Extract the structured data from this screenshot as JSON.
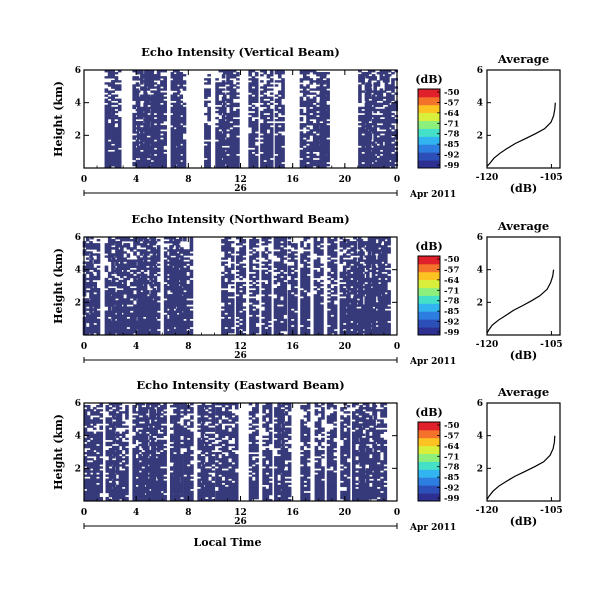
{
  "chart_data": {
    "type": "heatmap",
    "figure": {
      "xlabel": "Local Time",
      "date_label": "Apr 2011",
      "date_axis_tick": "26",
      "colorbar_unit": "(dB)",
      "colorbar_ticks": [
        "-50",
        "-57",
        "-64",
        "-71",
        "-78",
        "-85",
        "-92",
        "-99"
      ],
      "colorbar_colors": [
        "#2d3091",
        "#2c4fb8",
        "#2d7ee0",
        "#32b4f0",
        "#45e0c8",
        "#8ef07c",
        "#d8f03c",
        "#fcc323",
        "#f4722b",
        "#e0202a"
      ],
      "nodata_color": "#ffffff",
      "palette_low_color": "#373a7a"
    },
    "panels": [
      {
        "title": "Echo Intensity (Vertical Beam)",
        "ylabel": "Height (km)",
        "yticks": [
          "2",
          "4",
          "6"
        ],
        "ylim": [
          0,
          6
        ],
        "x_ticks": [
          "0",
          "4",
          "8",
          "12",
          "16",
          "20",
          "0"
        ],
        "xlim": [
          0,
          24
        ],
        "echo_columns_hours": [
          2.0,
          2.5,
          4.0,
          4.5,
          5.0,
          5.5,
          6.0,
          7.0,
          7.3,
          9.5,
          10.5,
          11.0,
          11.5,
          13.0,
          14.0,
          15.0,
          17.0,
          18.0,
          18.5,
          21.5,
          22.0,
          22.5,
          23.0,
          23.5
        ],
        "average": {
          "title": "Average",
          "xlabel": "(dB)",
          "xticks": [
            "-120",
            "-105"
          ],
          "xlim": [
            -120,
            -103
          ],
          "yticks": [
            "2",
            "4",
            "6"
          ],
          "ylim": [
            0,
            6
          ],
          "profile": [
            {
              "height": 0.1,
              "db": -120.0
            },
            {
              "height": 0.3,
              "db": -119.3
            },
            {
              "height": 0.6,
              "db": -118.4
            },
            {
              "height": 0.9,
              "db": -117.0
            },
            {
              "height": 1.2,
              "db": -115.3
            },
            {
              "height": 1.5,
              "db": -113.4
            },
            {
              "height": 1.8,
              "db": -111.0
            },
            {
              "height": 2.1,
              "db": -108.7
            },
            {
              "height": 2.4,
              "db": -106.6
            },
            {
              "height": 2.8,
              "db": -105.1
            },
            {
              "height": 3.2,
              "db": -104.5
            },
            {
              "height": 3.6,
              "db": -104.2
            },
            {
              "height": 4.0,
              "db": -104.1
            }
          ]
        }
      },
      {
        "title": "Echo Intensity (Northward Beam)",
        "ylabel": "Height (km)",
        "yticks": [
          "2",
          "4",
          "6"
        ],
        "ylim": [
          0,
          6
        ],
        "x_ticks": [
          "0",
          "4",
          "8",
          "12",
          "16",
          "20",
          "0"
        ],
        "xlim": [
          0,
          24
        ],
        "echo_columns_hours": [
          0.3,
          0.8,
          2.0,
          2.5,
          3.0,
          4.0,
          4.5,
          5.0,
          5.5,
          6.5,
          7.0,
          7.3,
          8.0,
          11.0,
          12.0,
          13.0,
          14.0,
          15.0,
          16.0,
          17.0,
          18.0,
          19.0,
          20.0,
          20.5,
          21.0,
          21.5,
          22.0,
          22.5,
          23.0
        ],
        "average": {
          "title": "Average",
          "xlabel": "(dB)",
          "xticks": [
            "-120",
            "-105"
          ],
          "xlim": [
            -120,
            -103
          ],
          "yticks": [
            "2",
            "4",
            "6"
          ],
          "ylim": [
            0,
            6
          ],
          "profile": [
            {
              "height": 0.1,
              "db": -120.0
            },
            {
              "height": 0.3,
              "db": -119.6
            },
            {
              "height": 0.6,
              "db": -118.8
            },
            {
              "height": 0.9,
              "db": -117.4
            },
            {
              "height": 1.2,
              "db": -115.6
            },
            {
              "height": 1.5,
              "db": -113.9
            },
            {
              "height": 1.8,
              "db": -111.7
            },
            {
              "height": 2.1,
              "db": -109.6
            },
            {
              "height": 2.4,
              "db": -107.7
            },
            {
              "height": 2.8,
              "db": -106.0
            },
            {
              "height": 3.2,
              "db": -105.2
            },
            {
              "height": 3.6,
              "db": -104.7
            },
            {
              "height": 4.0,
              "db": -104.5
            }
          ]
        }
      },
      {
        "title": "Echo Intensity (Eastward Beam)",
        "ylabel": "Height (km)",
        "yticks": [
          "2",
          "4",
          "6"
        ],
        "ylim": [
          0,
          6
        ],
        "x_ticks": [
          "0",
          "4",
          "8",
          "12",
          "16",
          "20",
          "0"
        ],
        "xlim": [
          0,
          24
        ],
        "echo_columns_hours": [
          0.3,
          1.0,
          2.0,
          2.5,
          3.0,
          4.0,
          4.5,
          5.0,
          5.5,
          6.0,
          7.0,
          7.3,
          8.0,
          9.0,
          9.5,
          10.5,
          11.5,
          13.0,
          14.0,
          15.0,
          15.5,
          17.0,
          18.0,
          19.0,
          20.0,
          21.0,
          21.5,
          22.0,
          22.5,
          23.0
        ],
        "average": {
          "title": "Average",
          "xlabel": "(dB)",
          "xticks": [
            "-120",
            "-105"
          ],
          "xlim": [
            -120,
            -103
          ],
          "yticks": [
            "2",
            "4",
            "6"
          ],
          "ylim": [
            0,
            6
          ],
          "profile": [
            {
              "height": 0.1,
              "db": -120.0
            },
            {
              "height": 0.3,
              "db": -119.5
            },
            {
              "height": 0.6,
              "db": -118.6
            },
            {
              "height": 0.9,
              "db": -117.3
            },
            {
              "height": 1.2,
              "db": -115.5
            },
            {
              "height": 1.5,
              "db": -113.6
            },
            {
              "height": 1.8,
              "db": -111.2
            },
            {
              "height": 2.1,
              "db": -108.9
            },
            {
              "height": 2.4,
              "db": -106.8
            },
            {
              "height": 2.8,
              "db": -105.3
            },
            {
              "height": 3.2,
              "db": -104.6
            },
            {
              "height": 3.6,
              "db": -104.3
            },
            {
              "height": 4.0,
              "db": -104.2
            }
          ]
        }
      }
    ]
  }
}
